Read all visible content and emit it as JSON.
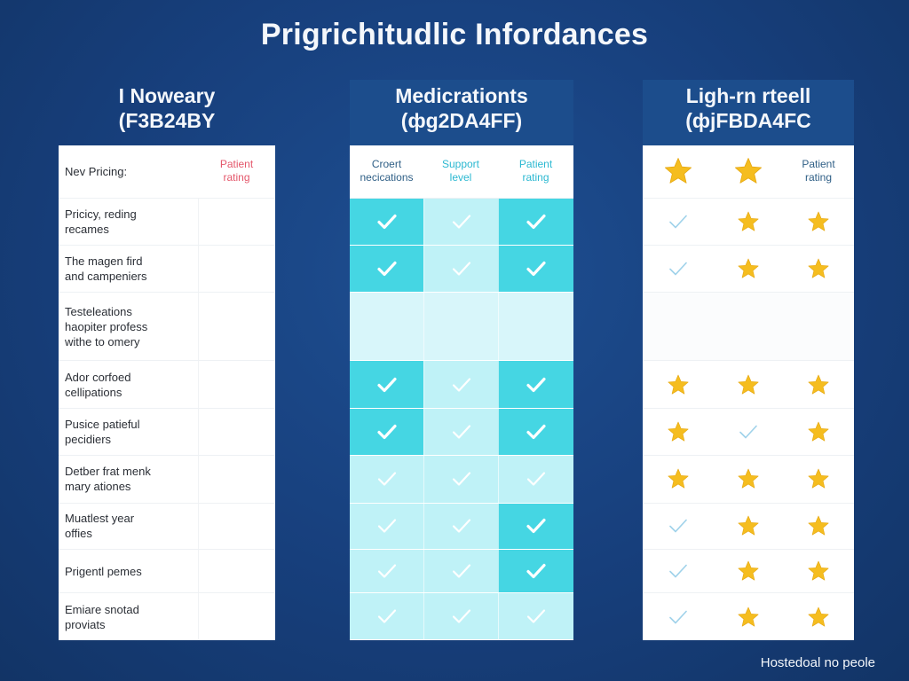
{
  "title": "Prigrichitudlic Infordances",
  "footer": "Hostedoal no peole",
  "colors": {
    "background": "#173f7c",
    "check_dark": "#45d6e3",
    "check_light": "#bff2f7",
    "star": "#f5bd1f",
    "outline_check": "#9fd2ea",
    "patient_rating_red": "#e4576b",
    "support_teal": "#2bb8d1"
  },
  "panels": [
    {
      "title": "I Noweary",
      "subtitle": "(F3B24BY",
      "header_left": "Nev Pricing:",
      "header_right": "Patient\nrating",
      "rows": [
        "Pricicy, reding\nrecames",
        "The magen fird\nand campeniers",
        "Testeleations\nhaopiter profess\nwithe to omery",
        "Ador corfoed\ncellipations",
        "Pusice patieful\npecidiers",
        "Detber frat menk\nmary ationes",
        "Muatlest year\noffies",
        "Prigentl pemes",
        "Emiare snotad\nproviats"
      ]
    },
    {
      "title": "Medicrationts",
      "subtitle": "(фg2DA4FF)",
      "columns": [
        "Croert\nnecications",
        "Support\nlevel",
        "Patient\nrating"
      ],
      "cells": [
        [
          "check-dark",
          "check-light",
          "check-dark"
        ],
        [
          "check-dark",
          "check-light",
          "check-dark"
        ],
        [
          "blank-mid",
          "blank-mid",
          "blank-mid"
        ],
        [
          "check-dark",
          "check-light",
          "check-dark"
        ],
        [
          "check-dark",
          "check-light",
          "check-dark"
        ],
        [
          "check-light",
          "check-light",
          "check-light"
        ],
        [
          "check-light",
          "check-light",
          "check-dark"
        ],
        [
          "check-light",
          "check-light",
          "check-dark"
        ],
        [
          "check-light",
          "check-light",
          "check-light"
        ]
      ]
    },
    {
      "title": "Ligh-rn rteell",
      "subtitle": "(фjFBDA4FC",
      "columns": [
        "star-icon",
        "star-icon",
        "Patient\nrating"
      ],
      "cells": [
        [
          "check-outline",
          "star",
          "star"
        ],
        [
          "check-outline",
          "star",
          "star"
        ],
        [
          "blank",
          "blank",
          "blank"
        ],
        [
          "star",
          "star",
          "star"
        ],
        [
          "star",
          "check-outline",
          "star"
        ],
        [
          "star",
          "star",
          "star"
        ],
        [
          "check-outline",
          "star",
          "star"
        ],
        [
          "check-outline",
          "star",
          "star"
        ],
        [
          "check-outline",
          "star",
          "star"
        ]
      ]
    }
  ]
}
